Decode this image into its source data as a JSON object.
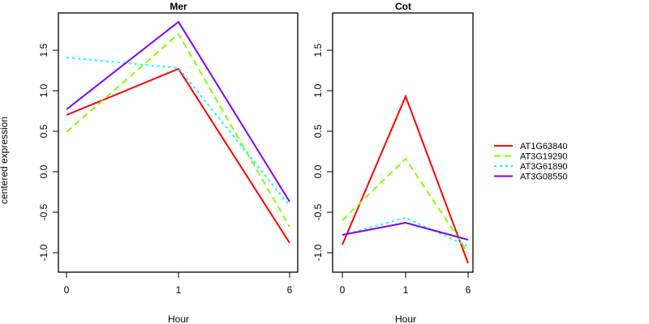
{
  "chart_data": [
    {
      "type": "line",
      "title": "Mer",
      "xlabel": "Hour",
      "ylabel": "centered expression",
      "categories": [
        "0",
        "1",
        "6"
      ],
      "ylim": [
        -1.25,
        1.95
      ],
      "yticks": [
        "-1.0",
        "-0.5",
        "0.0",
        "0.5",
        "1.0",
        "1.5"
      ],
      "ytick_values": [
        -1.0,
        -0.5,
        0.0,
        0.5,
        1.0,
        1.5
      ],
      "grid": false,
      "series": [
        {
          "name": "AT1G63840",
          "values": [
            0.7,
            1.27,
            -0.88
          ]
        },
        {
          "name": "AT3G19290",
          "values": [
            0.49,
            1.7,
            -0.68
          ]
        },
        {
          "name": "AT3G61890",
          "values": [
            1.41,
            1.28,
            -0.42
          ]
        },
        {
          "name": "AT3G08550",
          "values": [
            0.77,
            1.85,
            -0.37
          ]
        }
      ]
    },
    {
      "type": "line",
      "title": "Cot",
      "xlabel": "Hour",
      "ylabel": "",
      "categories": [
        "0",
        "1",
        "6"
      ],
      "ylim": [
        -1.25,
        1.95
      ],
      "yticks": [
        "-1.0",
        "-0.5",
        "0.0",
        "0.5",
        "1.0",
        "1.5"
      ],
      "ytick_values": [
        -1.0,
        -0.5,
        0.0,
        0.5,
        1.0,
        1.5
      ],
      "grid": false,
      "series": [
        {
          "name": "AT1G63840",
          "values": [
            -0.9,
            0.93,
            -1.13
          ]
        },
        {
          "name": "AT3G19290",
          "values": [
            -0.6,
            0.16,
            -1.0
          ]
        },
        {
          "name": "AT3G61890",
          "values": [
            -0.78,
            -0.57,
            -0.92
          ]
        },
        {
          "name": "AT3G08550",
          "values": [
            -0.78,
            -0.63,
            -0.84
          ]
        }
      ]
    }
  ],
  "legend": {
    "placement": "right",
    "entries": [
      {
        "name": "AT1G63840",
        "color": "#ff0000",
        "style": "solid"
      },
      {
        "name": "AT3G19290",
        "color": "#80ff00",
        "style": "dashed"
      },
      {
        "name": "AT3G61890",
        "color": "#00ffff",
        "style": "dotted"
      },
      {
        "name": "AT3G08550",
        "color": "#8000ff",
        "style": "solid"
      }
    ]
  },
  "shared_ylabel": "centered expression"
}
